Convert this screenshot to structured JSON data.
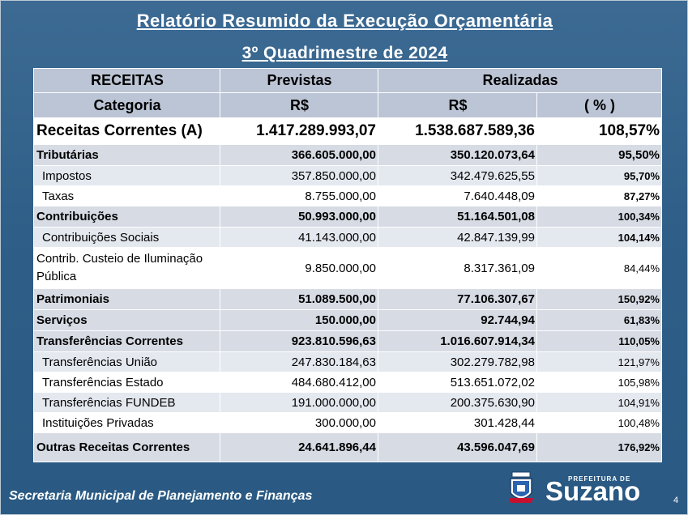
{
  "title": "Relatório Resumido da Execução Orçamentária",
  "subtitle": "3º Quadrimestre de 2024",
  "header": {
    "col1": "RECEITAS",
    "col2": "Previstas",
    "col3": "Realizadas",
    "sub1": "Categoria",
    "sub2": "R$",
    "sub3": "R$",
    "sub4": "( % )"
  },
  "total": {
    "label": "Receitas Correntes (A)",
    "previstas": "1.417.289.993,07",
    "realizadas": "1.538.687.589,36",
    "pct": "108,57%"
  },
  "rows": [
    {
      "label": "Tributárias",
      "previstas": "366.605.000,00",
      "realizadas": "350.120.073,64",
      "pct": "95,50%"
    },
    {
      "label": "Impostos",
      "previstas": "357.850.000,00",
      "realizadas": "342.479.625,55",
      "pct": "95,70%"
    },
    {
      "label": "Taxas",
      "previstas": "8.755.000,00",
      "realizadas": "7.640.448,09",
      "pct": "87,27%"
    },
    {
      "label": "Contribuições",
      "previstas": "50.993.000,00",
      "realizadas": "51.164.501,08",
      "pct": "100,34%"
    },
    {
      "label": "Contribuições Sociais",
      "previstas": "41.143.000,00",
      "realizadas": "42.847.139,99",
      "pct": "104,14%"
    },
    {
      "label": "Contrib. Custeio de Iluminação Pública",
      "previstas": "9.850.000,00",
      "realizadas": "8.317.361,09",
      "pct": "84,44%"
    },
    {
      "label": "Patrimoniais",
      "previstas": "51.089.500,00",
      "realizadas": "77.106.307,67",
      "pct": "150,92%"
    },
    {
      "label": "Serviços",
      "previstas": "150.000,00",
      "realizadas": "92.744,94",
      "pct": "61,83%"
    },
    {
      "label": "Transferências Correntes",
      "previstas": "923.810.596,63",
      "realizadas": "1.016.607.914,34",
      "pct": "110,05%"
    },
    {
      "label": "Transferências União",
      "previstas": "247.830.184,63",
      "realizadas": "302.279.782,98",
      "pct": "121,97%"
    },
    {
      "label": "Transferências Estado",
      "previstas": "484.680.412,00",
      "realizadas": "513.651.072,02",
      "pct": "105,98%"
    },
    {
      "label": "Transferências FUNDEB",
      "previstas": "191.000.000,00",
      "realizadas": "200.375.630,90",
      "pct": "104,91%"
    },
    {
      "label": "Instituições Privadas",
      "previstas": "300.000,00",
      "realizadas": "301.428,44",
      "pct": "100,48%"
    },
    {
      "label": "Outras Receitas Correntes",
      "previstas": "24.641.896,44",
      "realizadas": "43.596.047,69",
      "pct": "176,92%"
    }
  ],
  "footer": "Secretaria Municipal de Planejamento e Finanças",
  "page_number": "4",
  "logo": {
    "small": "PREFEITURA DE",
    "big": "Suzano"
  },
  "colors": {
    "background": "#2f5f88",
    "header_row": "#bcc5d5",
    "row_light": "#e4e8ef",
    "white": "#ffffff"
  }
}
